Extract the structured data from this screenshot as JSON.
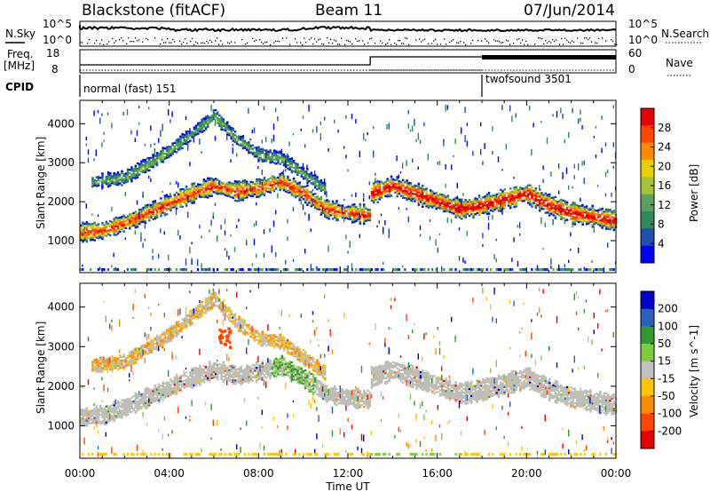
{
  "header": {
    "station": "Blackstone (fitACF)",
    "beam": "Beam 11",
    "date": "07/Jun/2014"
  },
  "top_panel": {
    "nsky_label": "N.Sky",
    "nsearch_label": "N.Search",
    "freq_label_1": "Freq.",
    "freq_label_2": "[MHz]",
    "nave_label": "Nave",
    "cpid_label": "CPID",
    "noise_ticks": [
      "10^5",
      "10^0"
    ],
    "noise_ticks_right": [
      "10^5",
      "10^0"
    ],
    "freq_ticks": [
      "18",
      "8"
    ],
    "nave_ticks": [
      "60",
      "0"
    ],
    "cpid_modes": [
      {
        "name": "normal (fast) 151",
        "start": "00:00",
        "end": "18:00"
      },
      {
        "name": "twofsound 3501",
        "start": "18:00",
        "end": "24:00"
      }
    ]
  },
  "colors": {
    "power": [
      "#0000ff",
      "#1f4fb3",
      "#2e8b57",
      "#5aa05a",
      "#a6c23a",
      "#e8d000",
      "#ff8c00",
      "#ff4500",
      "#e60000"
    ],
    "velocity": [
      "#e60000",
      "#ff4500",
      "#ff8c00",
      "#ffc400",
      "#c0c0c0",
      "#7ccc3c",
      "#2f9a2f",
      "#2b5fbf",
      "#0000cc"
    ],
    "gray_scatter": "#bebeb6"
  },
  "chart_data": [
    {
      "type": "heatmap",
      "title": "Power",
      "ylabel": "Slant Range [km]",
      "xlabel": "",
      "x_ticks": [
        "00:00",
        "04:00",
        "08:00",
        "12:00",
        "16:00",
        "20:00",
        "00:00"
      ],
      "y_ticks": [
        "1000",
        "2000",
        "3000",
        "4000"
      ],
      "ylim": [
        180,
        4600
      ],
      "xlim_hours": [
        0,
        24
      ],
      "colorbar": {
        "label": "Power [dB]",
        "ticks": [
          "28",
          "24",
          "20",
          "16",
          "12",
          "8",
          "4"
        ],
        "range": [
          0,
          30
        ]
      },
      "echo_bands": [
        {
          "name": "main",
          "start_h": 0,
          "end_h": 13,
          "points": [
            [
              0,
              1200
            ],
            [
              1,
              1250
            ],
            [
              2,
              1450
            ],
            [
              3,
              1700
            ],
            [
              4,
              1950
            ],
            [
              5,
              2200
            ],
            [
              6,
              2400
            ],
            [
              7,
              2250
            ],
            [
              8,
              2350
            ],
            [
              9,
              2500
            ],
            [
              10,
              2200
            ],
            [
              11,
              1800
            ],
            [
              12,
              1700
            ],
            [
              13,
              1650
            ]
          ],
          "width_km": 400,
          "peak_power": 24
        },
        {
          "name": "upper",
          "start_h": 0.5,
          "end_h": 11,
          "points": [
            [
              0.5,
              2500
            ],
            [
              2,
              2600
            ],
            [
              4,
              3300
            ],
            [
              6,
              4200
            ],
            [
              7,
              3600
            ],
            [
              8,
              3200
            ],
            [
              9,
              3100
            ],
            [
              10,
              2700
            ],
            [
              11,
              2300
            ]
          ],
          "width_km": 300,
          "peak_power": 10
        },
        {
          "name": "evening",
          "start_h": 13,
          "end_h": 24,
          "points": [
            [
              13,
              2200
            ],
            [
              14,
              2400
            ],
            [
              15,
              2200
            ],
            [
              16,
              2000
            ],
            [
              17,
              1800
            ],
            [
              18,
              1900
            ],
            [
              20,
              2200
            ],
            [
              21,
              1900
            ],
            [
              22,
              1700
            ],
            [
              23,
              1600
            ],
            [
              24,
              1500
            ]
          ],
          "width_km": 450,
          "peak_power": 27
        }
      ]
    },
    {
      "type": "heatmap",
      "title": "Velocity",
      "ylabel": "Slant Range [km]",
      "xlabel": "Time UT",
      "x_ticks": [
        "00:00",
        "04:00",
        "08:00",
        "12:00",
        "16:00",
        "20:00",
        "00:00"
      ],
      "y_ticks": [
        "1000",
        "2000",
        "3000",
        "4000"
      ],
      "ylim": [
        180,
        4600
      ],
      "colorbar": {
        "label": "Velocity [m s^-1]",
        "ticks": [
          "200",
          "100",
          "50",
          "15",
          "-15",
          "-50",
          "-100",
          "-200"
        ],
        "range": [
          -250,
          250
        ]
      },
      "notes": "ground scatter shown in gray (|v| < 15 m/s); patches of -100 near 06:00, 3200 km; positive (green) near 09:00-10:00, 2400-3000 km"
    }
  ]
}
